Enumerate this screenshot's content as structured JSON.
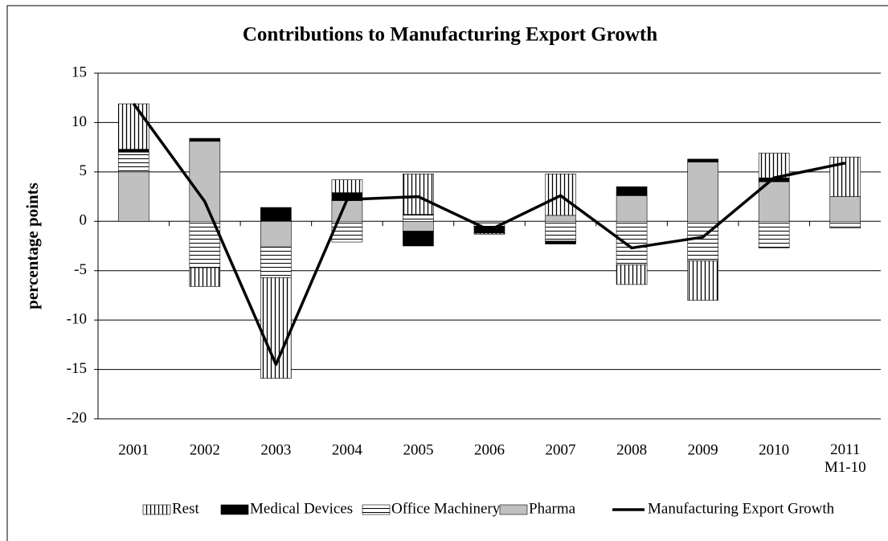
{
  "chart_data": {
    "type": "bar",
    "stacked": true,
    "title": "Contributions to Manufacturing Export Growth",
    "y_label": "percentage points",
    "categories": [
      "2001",
      "2002",
      "2003",
      "2004",
      "2005",
      "2006",
      "2007",
      "2008",
      "2009",
      "2010",
      "2011\nM1-10"
    ],
    "ylim": [
      -20,
      15
    ],
    "yticks": [
      -20,
      -15,
      -10,
      -5,
      0,
      5,
      10,
      15
    ],
    "grid": true,
    "legend": "bottom",
    "series": [
      {
        "name": "Rest",
        "color": "#000000",
        "pattern": "vertical-stripes",
        "values": [
          4.6,
          -1.9,
          -10.2,
          1.3,
          4.1,
          -0.1,
          4.2,
          -2.0,
          -4.0,
          2.5,
          4.0
        ]
      },
      {
        "name": "Medical Devices",
        "color": "#000000",
        "values": [
          0.3,
          0.3,
          1.4,
          0.8,
          -1.5,
          -0.7,
          -0.3,
          0.9,
          0.3,
          0.4,
          0.0
        ]
      },
      {
        "name": "Office Machinery",
        "color": "#000000",
        "pattern": "horizontal-stripes",
        "values": [
          2.0,
          -4.7,
          -3.1,
          -2.1,
          0.7,
          -0.3,
          -2.0,
          -4.4,
          -4.0,
          -2.7,
          -0.7
        ]
      },
      {
        "name": "Pharma",
        "color": "#c0c0c0",
        "values": [
          5.0,
          8.1,
          -2.6,
          2.1,
          -1.0,
          -0.2,
          0.6,
          2.6,
          6.0,
          4.0,
          2.5
        ]
      },
      {
        "name": "Manufacturing Export Growth",
        "type": "line",
        "color": "#000000",
        "values": [
          11.9,
          2.0,
          -14.5,
          2.2,
          2.5,
          -0.9,
          2.6,
          -2.7,
          -1.6,
          4.4,
          5.9
        ]
      }
    ]
  }
}
